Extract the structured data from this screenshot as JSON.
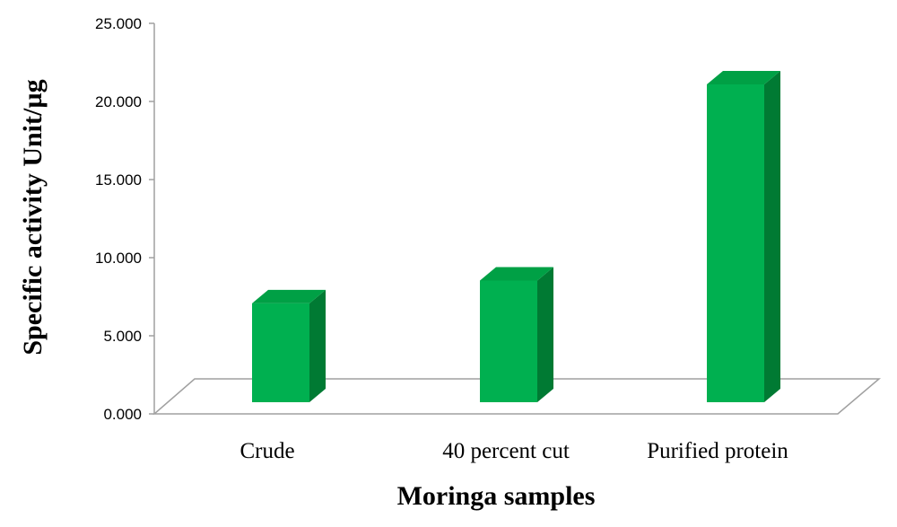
{
  "chart_data": {
    "type": "bar",
    "style": "3d-column",
    "categories": [
      "Crude",
      "40 percent cut",
      "Purified protein"
    ],
    "values": [
      6.5,
      8.0,
      20.9
    ],
    "xlabel": "Moringa samples",
    "ylabel": "Specific activity Unit/µg",
    "ylim": [
      0,
      25
    ],
    "yticks": [
      "0.000",
      "5.000",
      "10.000",
      "15.000",
      "20.000",
      "25.000"
    ],
    "grid": false,
    "legend": "none",
    "colors": {
      "bar_front": "#00B050",
      "bar_top": "#00A045",
      "bar_side": "#007A33",
      "axis": "#999999"
    }
  }
}
